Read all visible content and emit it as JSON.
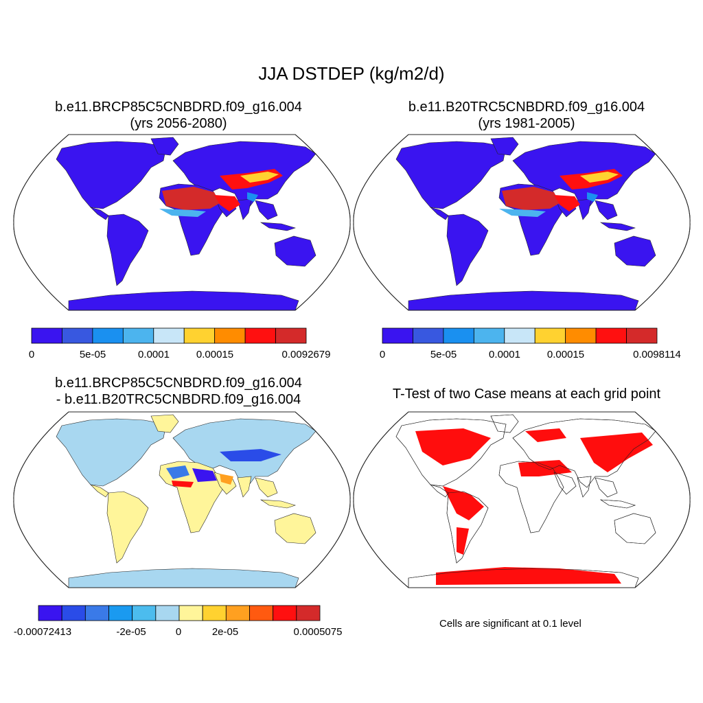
{
  "main_title": "JJA DSTDEP (kg/m2/d)",
  "colors": {
    "ocean": "#ffffff",
    "outline": "#222222",
    "low_dep": "#3a14f0",
    "sig_cell": "#ff0000",
    "diff_pos": "#fff59a",
    "diff_neg": "#a8d7f0"
  },
  "panels": [
    {
      "name": "future-case",
      "title_line1": "b.e11.BRCP85C5CNBDRD.f09_g16.004",
      "title_line2": "(yrs 2056-2080)",
      "colorbar": {
        "colors": [
          "#3a14f0",
          "#3858e0",
          "#1a90f0",
          "#4cb4ee",
          "#c8e6f8",
          "#ffd230",
          "#ff8c00",
          "#ff1010",
          "#d42a2a"
        ],
        "labels": [
          "0",
          "5e-05",
          "0.0001",
          "0.00015",
          "0.0092679"
        ]
      }
    },
    {
      "name": "historical-case",
      "title_line1": "b.e11.B20TRC5CNBDRD.f09_g16.004",
      "title_line2": "(yrs 1981-2005)",
      "colorbar": {
        "colors": [
          "#3a14f0",
          "#3858e0",
          "#1a90f0",
          "#4cb4ee",
          "#c8e6f8",
          "#ffd230",
          "#ff8c00",
          "#ff1010",
          "#d42a2a"
        ],
        "labels": [
          "0",
          "5e-05",
          "0.0001",
          "0.00015",
          "0.0098114"
        ]
      }
    },
    {
      "name": "difference",
      "title_line1": "b.e11.BRCP85C5CNBDRD.f09_g16.004",
      "title_line2": "- b.e11.B20TRC5CNBDRD.f09_g16.004",
      "colorbar": {
        "colors": [
          "#3a14f0",
          "#2a4ce8",
          "#3a7ae8",
          "#1a9af0",
          "#4cbcee",
          "#a8d7f0",
          "#fff59a",
          "#ffd230",
          "#ffa020",
          "#ff5a10",
          "#ff1010",
          "#d42a2a"
        ],
        "labels": [
          "-0.00072413",
          "-2e-05",
          "0",
          "2e-05",
          "0.0005075"
        ]
      }
    },
    {
      "name": "t-test",
      "title_line1": "T-Test of two Case means at each grid point",
      "note": "Cells are significant at 0.1 level"
    }
  ]
}
